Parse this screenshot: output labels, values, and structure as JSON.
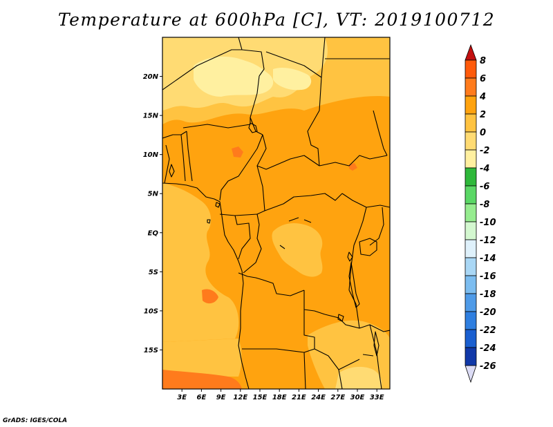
{
  "title": "Temperature at 600hPa [C], VT: 2019100712",
  "credit": "GrADS: IGES/COLA",
  "map": {
    "lon_range": [
      0,
      35
    ],
    "lat_range": [
      -20,
      25
    ],
    "lon_ticks": [
      {
        "value": 3,
        "label": "3E"
      },
      {
        "value": 6,
        "label": "6E"
      },
      {
        "value": 9,
        "label": "9E"
      },
      {
        "value": 12,
        "label": "12E"
      },
      {
        "value": 15,
        "label": "15E"
      },
      {
        "value": 18,
        "label": "18E"
      },
      {
        "value": 21,
        "label": "21E"
      },
      {
        "value": 24,
        "label": "24E"
      },
      {
        "value": 27,
        "label": "27E"
      },
      {
        "value": 30,
        "label": "30E"
      },
      {
        "value": 33,
        "label": "33E"
      }
    ],
    "lat_ticks": [
      {
        "value": 20,
        "label": "20N"
      },
      {
        "value": 15,
        "label": "15N"
      },
      {
        "value": 10,
        "label": "10N"
      },
      {
        "value": 5,
        "label": "5N"
      },
      {
        "value": 0,
        "label": "EQ"
      },
      {
        "value": -5,
        "label": "5S"
      },
      {
        "value": -10,
        "label": "10S"
      },
      {
        "value": -15,
        "label": "15S"
      }
    ],
    "colors": {
      "band_m4_m2": "#fff0a0",
      "band_m2_0": "#ffdb73",
      "band_0_2": "#ffc341",
      "band_2_4": "#ffa30f",
      "band_4_6": "#ff7b1c",
      "border": "#000000"
    }
  },
  "colorbar": {
    "labels": [
      "8",
      "6",
      "4",
      "2",
      "0",
      "-2",
      "-4",
      "-6",
      "-8",
      "-10",
      "-12",
      "-14",
      "-16",
      "-18",
      "-20",
      "-22",
      "-24",
      "-26"
    ],
    "top_triangle_color": "#c31010",
    "bottom_triangle_color": "#dcdcf5",
    "colors": [
      "#e61a0a",
      "#ff5a0a",
      "#ff7b1c",
      "#ffa30f",
      "#ffc341",
      "#ffdb73",
      "#fff0a0",
      "#2eb83a",
      "#5ad765",
      "#96ec8f",
      "#d4f8d0",
      "#dff1fb",
      "#a9d7f5",
      "#7cbdf0",
      "#4f9be8",
      "#2f7fe0",
      "#1a5fd0",
      "#1038a8",
      "#081a70"
    ]
  }
}
